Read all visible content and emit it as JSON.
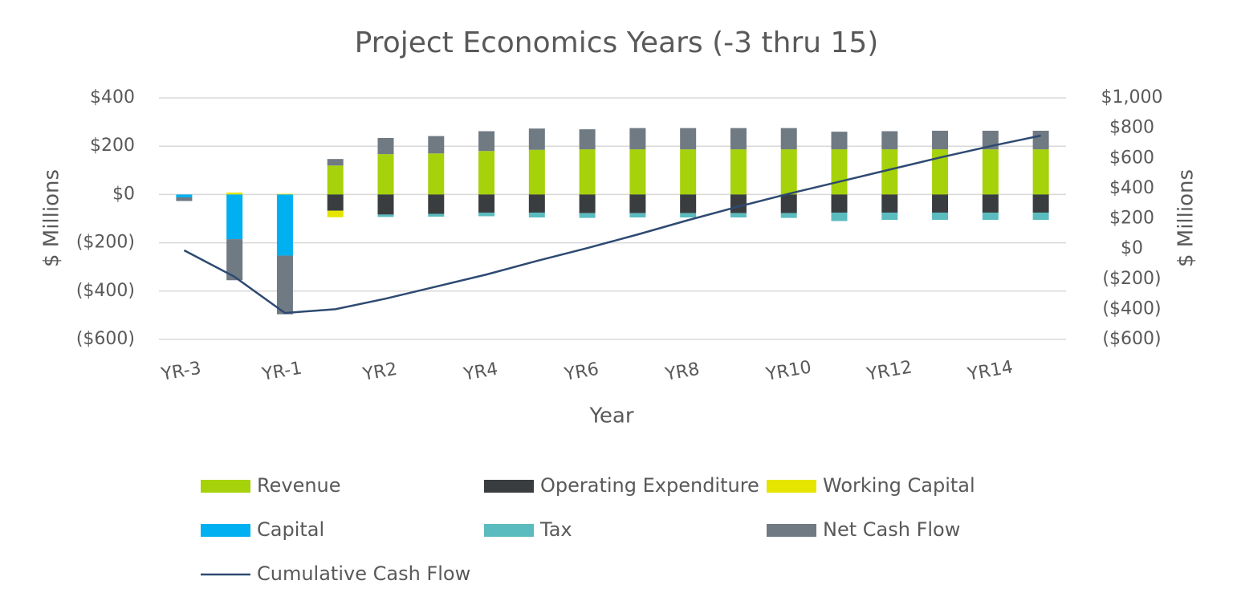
{
  "chart_data": {
    "type": "bar",
    "title": "Project Economics Years (-3 thru 15)",
    "xlabel": "Year",
    "ylabel": "$ Millions",
    "y2label": "$ Millions",
    "stacked": true,
    "grid": true,
    "legend": "bottom",
    "categories": [
      "YR-3",
      null,
      "YR-1",
      null,
      "YR2",
      null,
      "YR4",
      null,
      "YR6",
      null,
      "YR8",
      null,
      "YR10",
      null,
      "YR12",
      null,
      "YR14",
      null
    ],
    "ylim": [
      -600,
      400
    ],
    "yticks": [
      {
        "value": -600,
        "label": "($600)"
      },
      {
        "value": -400,
        "label": "($400)"
      },
      {
        "value": -200,
        "label": "($200)"
      },
      {
        "value": 0,
        "label": "$0"
      },
      {
        "value": 200,
        "label": "$200"
      },
      {
        "value": 400,
        "label": "$400"
      }
    ],
    "y2lim": [
      -600,
      1000
    ],
    "y2ticks": [
      {
        "value": -600,
        "label": "($600)"
      },
      {
        "value": -400,
        "label": "($400)"
      },
      {
        "value": -200,
        "label": "($200)"
      },
      {
        "value": 0,
        "label": "$0"
      },
      {
        "value": 200,
        "label": "$200"
      },
      {
        "value": 400,
        "label": "$400"
      },
      {
        "value": 600,
        "label": "$600"
      },
      {
        "value": 800,
        "label": "$800"
      },
      {
        "value": 1000,
        "label": "$1,000"
      }
    ],
    "series": [
      {
        "name": "Revenue",
        "color": "#a5d20a",
        "values": [
          0,
          0,
          0,
          120,
          167,
          170,
          180,
          185,
          187,
          187,
          187,
          187,
          187,
          187,
          187,
          187,
          187,
          187
        ]
      },
      {
        "name": "Operating Expenditure",
        "color": "#3a3d3f",
        "values": [
          0,
          0,
          0,
          -67,
          -83,
          -80,
          -75,
          -75,
          -77,
          -77,
          -77,
          -77,
          -77,
          -75,
          -75,
          -75,
          -75,
          -75
        ]
      },
      {
        "name": "Working Capital",
        "color": "#e5e500",
        "values": [
          0,
          8,
          3,
          -27,
          0,
          0,
          0,
          0,
          0,
          0,
          0,
          0,
          0,
          0,
          0,
          0,
          0,
          0
        ]
      },
      {
        "name": "Capital",
        "color": "#00b0f0",
        "values": [
          -12,
          -185,
          -253,
          0,
          0,
          0,
          0,
          0,
          0,
          0,
          0,
          0,
          0,
          0,
          0,
          0,
          0,
          0
        ]
      },
      {
        "name": "Tax",
        "color": "#5bbcbf",
        "values": [
          0,
          0,
          0,
          0,
          -10,
          -12,
          -15,
          -20,
          -20,
          -18,
          -18,
          -18,
          -20,
          -35,
          -30,
          -30,
          -30,
          -30
        ]
      },
      {
        "name": "Net Cash Flow",
        "color": "#707a83",
        "values": [
          -15,
          -170,
          -243,
          27,
          67,
          72,
          82,
          88,
          83,
          88,
          88,
          88,
          88,
          73,
          75,
          77,
          77,
          77
        ]
      },
      {
        "name": "Cumulative Cash Flow",
        "color": "#2e4a72",
        "type": "line",
        "axis": "y2",
        "values": [
          -10,
          -185,
          -425,
          -400,
          -330,
          -250,
          -170,
          -80,
          5,
          95,
          190,
          280,
          365,
          445,
          525,
          605,
          680,
          750
        ]
      }
    ]
  }
}
